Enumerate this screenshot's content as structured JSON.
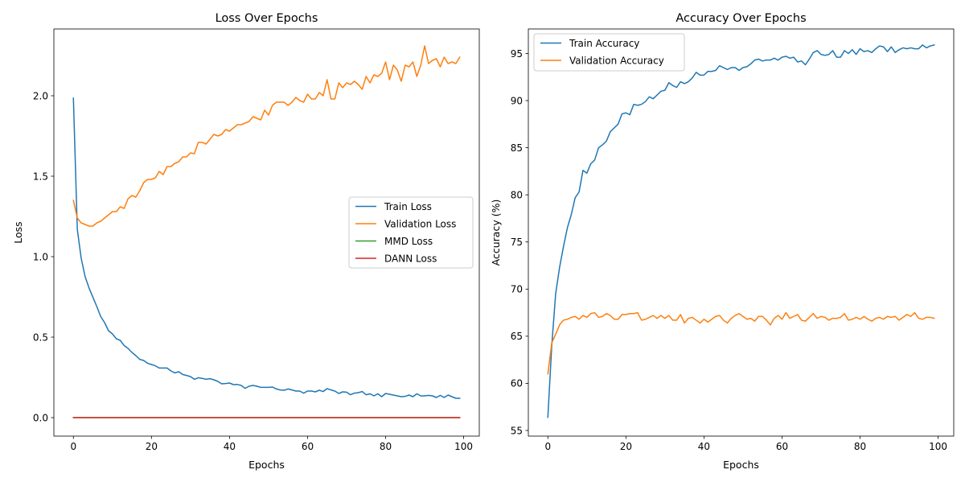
{
  "chart_data": [
    {
      "type": "line",
      "title": "Loss Over Epochs",
      "xlabel": "Epochs",
      "ylabel": "Loss",
      "xlim": [
        -5,
        104
      ],
      "ylim": [
        -0.115,
        2.415
      ],
      "xticks": [
        0,
        20,
        40,
        60,
        80,
        100
      ],
      "xtick_labels": [
        "0",
        "20",
        "40",
        "60",
        "80",
        "100"
      ],
      "yticks": [
        0.0,
        0.5,
        1.0,
        1.5,
        2.0
      ],
      "ytick_labels": [
        "0.0",
        "0.5",
        "1.0",
        "1.5",
        "2.0"
      ],
      "legend_position": "center-right",
      "grid": false,
      "series": [
        {
          "name": "Train Loss",
          "color": "#1f77b4",
          "values": [
            1.985,
            1.17,
            0.99,
            0.876,
            0.806,
            0.748,
            0.69,
            0.628,
            0.59,
            0.54,
            0.52,
            0.49,
            0.48,
            0.448,
            0.43,
            0.405,
            0.385,
            0.362,
            0.355,
            0.338,
            0.33,
            0.322,
            0.308,
            0.308,
            0.308,
            0.29,
            0.278,
            0.285,
            0.268,
            0.262,
            0.255,
            0.238,
            0.248,
            0.244,
            0.238,
            0.242,
            0.235,
            0.225,
            0.21,
            0.212,
            0.215,
            0.205,
            0.206,
            0.2,
            0.182,
            0.195,
            0.2,
            0.195,
            0.188,
            0.188,
            0.188,
            0.19,
            0.178,
            0.172,
            0.17,
            0.178,
            0.172,
            0.165,
            0.165,
            0.152,
            0.165,
            0.165,
            0.16,
            0.17,
            0.162,
            0.18,
            0.172,
            0.165,
            0.15,
            0.16,
            0.158,
            0.142,
            0.152,
            0.155,
            0.162,
            0.142,
            0.148,
            0.135,
            0.148,
            0.13,
            0.15,
            0.145,
            0.14,
            0.135,
            0.13,
            0.132,
            0.14,
            0.13,
            0.148,
            0.135,
            0.135,
            0.138,
            0.135,
            0.125,
            0.138,
            0.125,
            0.14,
            0.13,
            0.12,
            0.12
          ]
        },
        {
          "name": "Validation Loss",
          "color": "#ff7f0e",
          "values": [
            1.35,
            1.24,
            1.21,
            1.2,
            1.19,
            1.19,
            1.21,
            1.22,
            1.24,
            1.26,
            1.28,
            1.28,
            1.31,
            1.3,
            1.36,
            1.38,
            1.37,
            1.41,
            1.46,
            1.48,
            1.48,
            1.49,
            1.53,
            1.51,
            1.56,
            1.56,
            1.58,
            1.59,
            1.62,
            1.62,
            1.645,
            1.64,
            1.71,
            1.71,
            1.7,
            1.73,
            1.76,
            1.75,
            1.76,
            1.79,
            1.78,
            1.8,
            1.82,
            1.82,
            1.83,
            1.84,
            1.87,
            1.86,
            1.85,
            1.91,
            1.88,
            1.94,
            1.96,
            1.96,
            1.96,
            1.94,
            1.96,
            1.99,
            1.97,
            1.96,
            2.01,
            1.98,
            1.98,
            2.02,
            2.0,
            2.1,
            1.98,
            1.98,
            2.08,
            2.05,
            2.08,
            2.07,
            2.09,
            2.07,
            2.04,
            2.12,
            2.08,
            2.13,
            2.12,
            2.14,
            2.21,
            2.1,
            2.19,
            2.16,
            2.09,
            2.19,
            2.18,
            2.21,
            2.12,
            2.19,
            2.31,
            2.2,
            2.22,
            2.23,
            2.18,
            2.24,
            2.2,
            2.21,
            2.2,
            2.24
          ]
        },
        {
          "name": "MMD Loss",
          "color": "#2ca02c",
          "values": [
            0,
            0,
            0,
            0,
            0,
            0,
            0,
            0,
            0,
            0,
            0,
            0,
            0,
            0,
            0,
            0,
            0,
            0,
            0,
            0,
            0,
            0,
            0,
            0,
            0,
            0,
            0,
            0,
            0,
            0,
            0,
            0,
            0,
            0,
            0,
            0,
            0,
            0,
            0,
            0,
            0,
            0,
            0,
            0,
            0,
            0,
            0,
            0,
            0,
            0,
            0,
            0,
            0,
            0,
            0,
            0,
            0,
            0,
            0,
            0,
            0,
            0,
            0,
            0,
            0,
            0,
            0,
            0,
            0,
            0,
            0,
            0,
            0,
            0,
            0,
            0,
            0,
            0,
            0,
            0,
            0,
            0,
            0,
            0,
            0,
            0,
            0,
            0,
            0,
            0,
            0,
            0,
            0,
            0,
            0,
            0,
            0,
            0,
            0,
            0
          ]
        },
        {
          "name": "DANN Loss",
          "color": "#d62728",
          "values": [
            0,
            0,
            0,
            0,
            0,
            0,
            0,
            0,
            0,
            0,
            0,
            0,
            0,
            0,
            0,
            0,
            0,
            0,
            0,
            0,
            0,
            0,
            0,
            0,
            0,
            0,
            0,
            0,
            0,
            0,
            0,
            0,
            0,
            0,
            0,
            0,
            0,
            0,
            0,
            0,
            0,
            0,
            0,
            0,
            0,
            0,
            0,
            0,
            0,
            0,
            0,
            0,
            0,
            0,
            0,
            0,
            0,
            0,
            0,
            0,
            0,
            0,
            0,
            0,
            0,
            0,
            0,
            0,
            0,
            0,
            0,
            0,
            0,
            0,
            0,
            0,
            0,
            0,
            0,
            0,
            0,
            0,
            0,
            0,
            0,
            0,
            0,
            0,
            0,
            0,
            0,
            0,
            0,
            0,
            0,
            0,
            0,
            0,
            0,
            0
          ]
        }
      ]
    },
    {
      "type": "line",
      "title": "Accuracy Over Epochs",
      "xlabel": "Epochs",
      "ylabel": "Accuracy (%)",
      "xlim": [
        -5,
        104
      ],
      "ylim": [
        54.4,
        97.6
      ],
      "xticks": [
        0,
        20,
        40,
        60,
        80,
        100
      ],
      "xtick_labels": [
        "0",
        "20",
        "40",
        "60",
        "80",
        "100"
      ],
      "yticks": [
        55,
        60,
        65,
        70,
        75,
        80,
        85,
        90,
        95
      ],
      "ytick_labels": [
        "55",
        "60",
        "65",
        "70",
        "75",
        "80",
        "85",
        "90",
        "95"
      ],
      "legend_position": "top-left",
      "grid": false,
      "series": [
        {
          "name": "Train Accuracy",
          "color": "#1f77b4",
          "values": [
            56.4,
            64.0,
            69.5,
            72.3,
            74.5,
            76.5,
            77.9,
            79.7,
            80.3,
            82.6,
            82.3,
            83.3,
            83.7,
            85.0,
            85.3,
            85.7,
            86.7,
            87.1,
            87.5,
            88.6,
            88.7,
            88.5,
            89.6,
            89.5,
            89.6,
            89.9,
            90.4,
            90.2,
            90.6,
            91.0,
            91.1,
            91.9,
            91.6,
            91.4,
            92.0,
            91.8,
            92.0,
            92.4,
            93.0,
            92.7,
            92.7,
            93.1,
            93.1,
            93.2,
            93.7,
            93.5,
            93.3,
            93.5,
            93.5,
            93.2,
            93.5,
            93.6,
            93.9,
            94.3,
            94.4,
            94.2,
            94.3,
            94.3,
            94.5,
            94.3,
            94.6,
            94.7,
            94.5,
            94.6,
            94.1,
            94.2,
            93.8,
            94.4,
            95.1,
            95.3,
            94.9,
            94.8,
            94.9,
            95.3,
            94.6,
            94.6,
            95.3,
            95.0,
            95.4,
            94.9,
            95.5,
            95.2,
            95.3,
            95.1,
            95.5,
            95.8,
            95.7,
            95.2,
            95.7,
            95.1,
            95.4,
            95.6,
            95.5,
            95.6,
            95.5,
            95.5,
            95.9,
            95.6,
            95.8,
            95.9
          ]
        },
        {
          "name": "Validation Accuracy",
          "color": "#ff7f0e",
          "values": [
            61.0,
            64.3,
            65.2,
            66.2,
            66.7,
            66.8,
            67.0,
            67.1,
            66.8,
            67.2,
            67.0,
            67.4,
            67.5,
            67.0,
            67.1,
            67.4,
            67.2,
            66.8,
            66.8,
            67.3,
            67.3,
            67.4,
            67.4,
            67.5,
            66.7,
            66.8,
            67.0,
            67.2,
            66.9,
            67.2,
            66.9,
            67.2,
            66.7,
            66.7,
            67.3,
            66.4,
            66.9,
            67.0,
            66.7,
            66.4,
            66.8,
            66.5,
            66.8,
            67.1,
            67.2,
            66.7,
            66.4,
            66.9,
            67.2,
            67.4,
            67.1,
            66.8,
            66.9,
            66.6,
            67.1,
            67.1,
            66.7,
            66.2,
            66.9,
            67.2,
            66.8,
            67.5,
            66.9,
            67.1,
            67.3,
            66.7,
            66.6,
            67.0,
            67.4,
            66.9,
            67.1,
            67.0,
            66.7,
            66.9,
            66.9,
            67.0,
            67.4,
            66.7,
            66.8,
            67.0,
            66.8,
            67.1,
            66.8,
            66.6,
            66.9,
            67.0,
            66.8,
            67.1,
            67.0,
            67.1,
            66.7,
            67.0,
            67.3,
            67.1,
            67.5,
            66.9,
            66.8,
            67.0,
            67.0,
            66.9
          ]
        }
      ]
    }
  ]
}
